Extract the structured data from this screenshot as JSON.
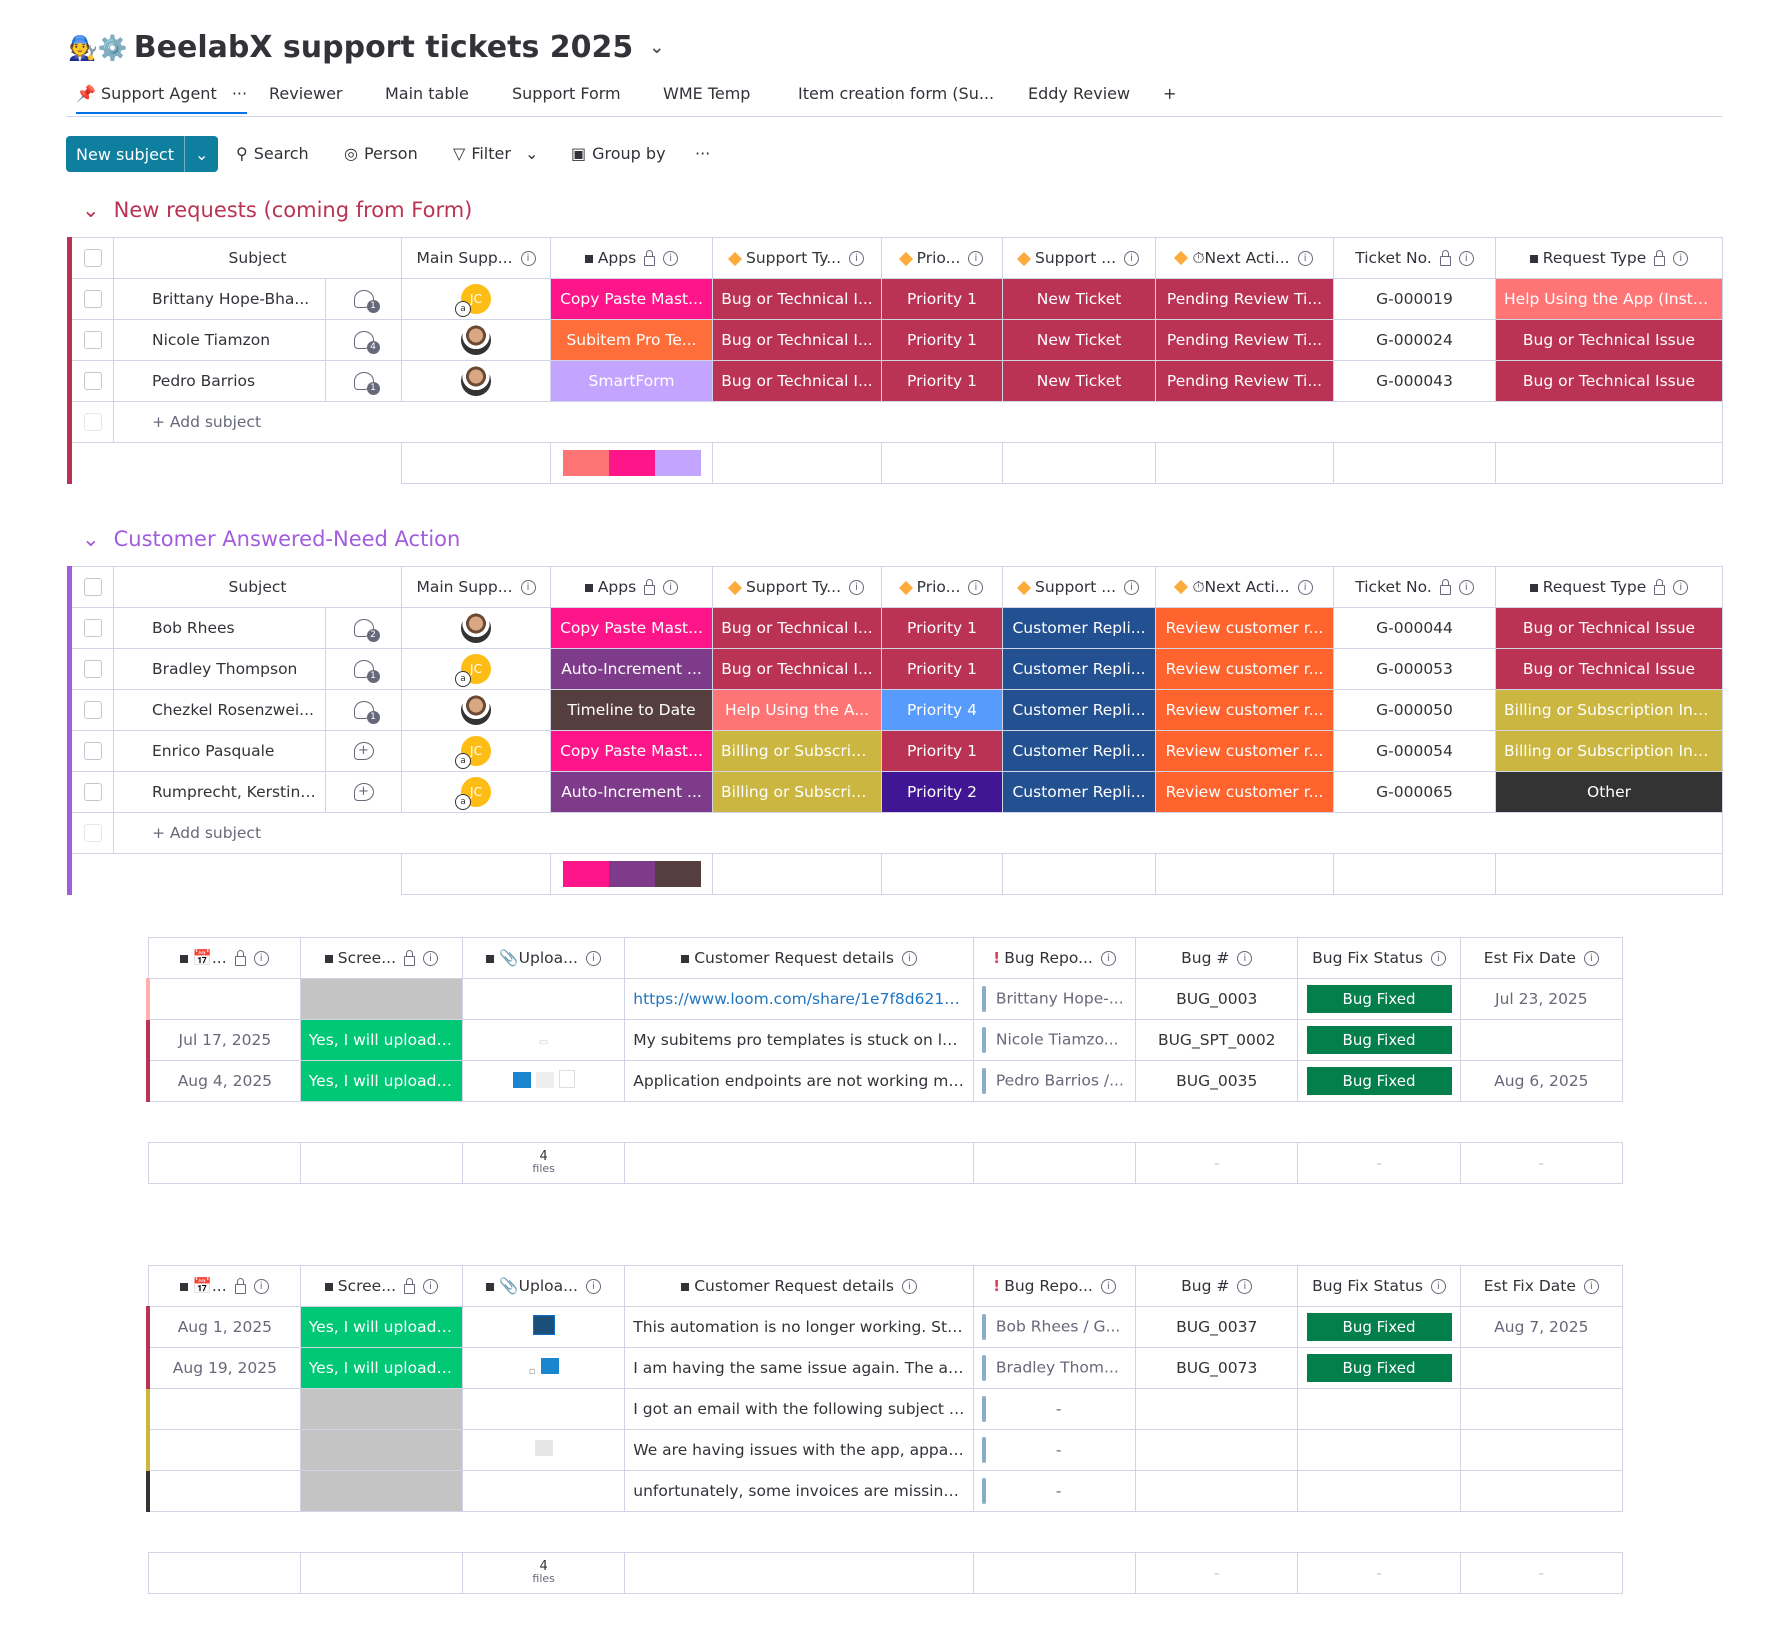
{
  "board": {
    "title": "BeelabX support tickets 2025",
    "emoji": "🧑‍🔧⚙️"
  },
  "tabs": [
    "Support Agent",
    "Reviewer",
    "Main table",
    "Support Form",
    "WME Temp",
    "Item creation form (Su...",
    "Eddy Review",
    "+"
  ],
  "toolbar": {
    "new": "New subject",
    "search": "Search",
    "person": "Person",
    "filter": "Filter",
    "group": "Group by",
    "more": "···"
  },
  "cols": {
    "subject": "Subject",
    "main": "Main Supp...",
    "apps": "Apps",
    "stype": "Support Ty...",
    "prio": "Prio...",
    "support": "Support ...",
    "next": "Next Acti...",
    "ticket": "Ticket No.",
    "req": "Request Type",
    "date": "...",
    "scree": "Scree...",
    "upload": "Uploa...",
    "crd": "Customer Request details",
    "bugrepo": "Bug Repo...",
    "bugno": "Bug #",
    "bugfix": "Bug Fix Status",
    "estfix": "Est Fix Date",
    "add": "+ Add subject",
    "files_n": "4",
    "files": "files",
    "dash": "-"
  },
  "group1": {
    "title": "New requests (coming from Form)",
    "color": "#bb3354",
    "rows": [
      {
        "subject": "Brittany Hope-Bha...",
        "upd": "1",
        "av": "jc",
        "apps": "Copy Paste Mast...",
        "appsC": "#ff158a",
        "stype": "Bug or Technical I...",
        "stypeC": "#bb3354",
        "prio": "Priority 1",
        "prioC": "#bb3354",
        "support": "New Ticket",
        "supportC": "#bb3354",
        "next": "Pending Review Ti...",
        "nextC": "#bb3354",
        "ticket": "G-000019",
        "req": "Help Using the App (Instal...",
        "reqC": "#ff7575"
      },
      {
        "subject": "Nicole Tiamzon",
        "upd": "4",
        "av": "ph",
        "apps": "Subitem Pro Te...",
        "appsC": "#ff6d3b",
        "stype": "Bug or Technical I...",
        "stypeC": "#bb3354",
        "prio": "Priority 1",
        "prioC": "#bb3354",
        "support": "New Ticket",
        "supportC": "#bb3354",
        "next": "Pending Review Ti...",
        "nextC": "#bb3354",
        "ticket": "G-000024",
        "req": "Bug or Technical Issue",
        "reqC": "#bb3354"
      },
      {
        "subject": "Pedro Barrios",
        "upd": "1",
        "av": "ph",
        "apps": "SmartForm",
        "appsC": "#c3a5ff",
        "stype": "Bug or Technical I...",
        "stypeC": "#bb3354",
        "prio": "Priority 1",
        "prioC": "#bb3354",
        "support": "New Ticket",
        "supportC": "#bb3354",
        "next": "Pending Review Ti...",
        "nextC": "#bb3354",
        "ticket": "G-000043",
        "req": "Bug or Technical Issue",
        "reqC": "#bb3354"
      }
    ],
    "sum": [
      "#ff7575",
      "#ff158a",
      "#c3a5ff"
    ],
    "sub": [
      {
        "date": "",
        "scree": "",
        "upload": "",
        "crd": "https://www.loom.com/share/1e7f8d621cc...",
        "link": true,
        "bugrepo": "Brittany Hope-...",
        "bugno": "BUG_0003",
        "bugfix": "Bug Fixed",
        "estfix": "Jul 23, 2025"
      },
      {
        "date": "Jul 17, 2025",
        "scree": "Yes, I will upload ...",
        "upload": "doc",
        "crd": "My subitems pro templates is stuck on loadi...",
        "bugrepo": "Nicole Tiamzo...",
        "bugno": "BUG_SPT_0002",
        "bugfix": "Bug Fixed",
        "estfix": ""
      },
      {
        "date": "Aug 4, 2025",
        "scree": "Yes, I will upload ...",
        "upload": "img3",
        "crd": "Application endpoints are not working mea...",
        "bugrepo": "Pedro Barrios /...",
        "bugno": "BUG_0035",
        "bugfix": "Bug Fixed",
        "estfix": "Aug 6, 2025"
      }
    ]
  },
  "group2": {
    "title": "Customer Answered-Need Action",
    "color": "#a25ddc",
    "rows": [
      {
        "subject": "Bob Rhees",
        "upd": "2",
        "av": "ph",
        "apps": "Copy Paste Mast...",
        "appsC": "#ff158a",
        "stype": "Bug or Technical I...",
        "stypeC": "#bb3354",
        "prio": "Priority 1",
        "prioC": "#bb3354",
        "support": "Customer Repli...",
        "supportC": "#225091",
        "next": "Review customer r...",
        "nextC": "#ff642e",
        "ticket": "G-000044",
        "req": "Bug or Technical Issue",
        "reqC": "#bb3354"
      },
      {
        "subject": "Bradley Thompson",
        "upd": "1",
        "av": "jc",
        "apps": "Auto-Increment ...",
        "appsC": "#7e3b8a",
        "stype": "Bug or Technical I...",
        "stypeC": "#bb3354",
        "prio": "Priority 1",
        "prioC": "#bb3354",
        "support": "Customer Repli...",
        "supportC": "#225091",
        "next": "Review customer r...",
        "nextC": "#ff642e",
        "ticket": "G-000053",
        "req": "Bug or Technical Issue",
        "reqC": "#bb3354"
      },
      {
        "subject": "Chezkel Rosenzwei...",
        "upd": "1",
        "av": "ph",
        "apps": "Timeline to Date",
        "appsC": "#563e3e",
        "stype": "Help Using the A...",
        "stypeC": "#ff7575",
        "prio": "Priority 4",
        "prioC": "#579bfc",
        "support": "Customer Repli...",
        "supportC": "#225091",
        "next": "Review customer r...",
        "nextC": "#ff642e",
        "ticket": "G-000050",
        "req": "Billing or Subscription Inq...",
        "reqC": "#cab641"
      },
      {
        "subject": "Enrico Pasquale",
        "upd": "+",
        "av": "jc",
        "apps": "Copy Paste Mast...",
        "appsC": "#ff158a",
        "stype": "Billing or Subscrip...",
        "stypeC": "#cab641",
        "prio": "Priority 1",
        "prioC": "#bb3354",
        "support": "Customer Repli...",
        "supportC": "#225091",
        "next": "Review customer r...",
        "nextC": "#ff642e",
        "ticket": "G-000054",
        "req": "Billing or Subscription Inq...",
        "reqC": "#cab641"
      },
      {
        "subject": "Rumprecht, Kerstin ...",
        "upd": "+",
        "av": "jc",
        "apps": "Auto-Increment ...",
        "appsC": "#7e3b8a",
        "stype": "Billing or Subscrip...",
        "stypeC": "#cab641",
        "prio": "Priority 2",
        "prioC": "#401694",
        "support": "Customer Repli...",
        "supportC": "#225091",
        "next": "Review customer r...",
        "nextC": "#ff642e",
        "ticket": "G-000065",
        "req": "Other",
        "reqC": "#333333"
      }
    ],
    "sum": [
      "#ff158a",
      "#7e3b8a",
      "#563e3e"
    ],
    "sub": [
      {
        "date": "Aug 1, 2025",
        "scree": "Yes, I will upload ...",
        "upload": "img1",
        "crd": "This automation is no longer working. Status...",
        "bugrepo": "Bob Rhees / G...",
        "bugno": "BUG_0037",
        "bugfix": "Bug Fixed",
        "estfix": "Aug 7, 2025"
      },
      {
        "date": "Aug 19, 2025",
        "scree": "Yes, I will upload ...",
        "upload": "img2",
        "crd": "I am having the same issue again. The auto...",
        "bugrepo": "Bradley Thom...",
        "bugno": "BUG_0073",
        "bugfix": "Bug Fixed",
        "estfix": ""
      },
      {
        "date": "",
        "scree": "",
        "upload": "",
        "crd": "I got an email with the following subject line...",
        "bugrepo": "-",
        "bugno": "",
        "bugfix": "",
        "estfix": ""
      },
      {
        "date": "",
        "scree": "",
        "upload": "doc2",
        "crd": "We are having issues with the app, apparent...",
        "bugrepo": "-",
        "bugno": "",
        "bugfix": "",
        "estfix": ""
      },
      {
        "date": "",
        "scree": "",
        "upload": "",
        "crd": "unfortunately, some invoices are missing ag...",
        "bugrepo": "-",
        "bugno": "",
        "bugfix": "",
        "estfix": ""
      }
    ]
  }
}
